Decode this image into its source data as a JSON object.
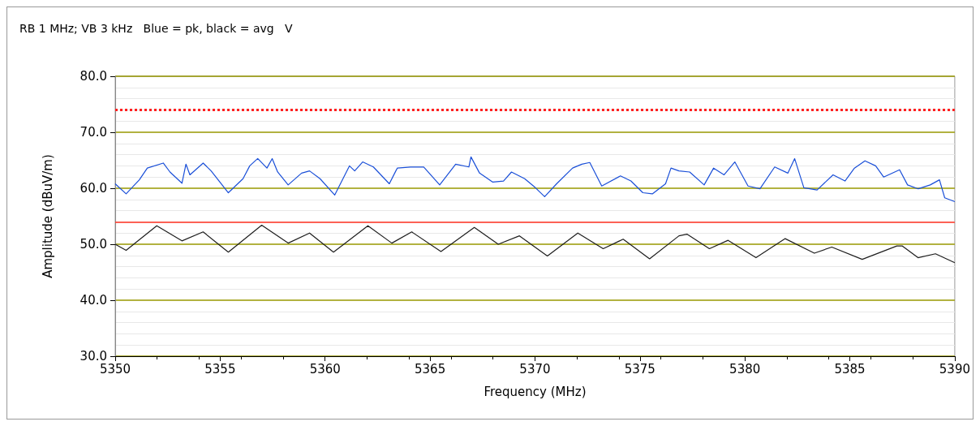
{
  "chart_data": {
    "type": "line",
    "title": "RB 1 MHz; VB 3 kHz   Blue = pk, black = avg   V",
    "xlabel": "Frequency (MHz)",
    "ylabel": "Amplitude (dBuV/m)",
    "xlim": [
      5350,
      5390
    ],
    "xticks": [
      5350,
      5355,
      5360,
      5365,
      5370,
      5375,
      5380,
      5385,
      5390
    ],
    "ylim": [
      30,
      80
    ],
    "yticks": [
      {
        "value": 30,
        "label": "30.0"
      },
      {
        "value": 40,
        "label": "40.0"
      },
      {
        "value": 50,
        "label": "50.0"
      },
      {
        "value": 60,
        "label": "60.0"
      },
      {
        "value": 70,
        "label": "70.0"
      },
      {
        "value": 80,
        "label": "80.0"
      }
    ],
    "grid": "y",
    "marker": "none",
    "line_style": "solid",
    "ref_lines": [
      {
        "axis": "y",
        "value": 74,
        "label": null,
        "color": "#ff2020",
        "line_style": "dotted"
      },
      {
        "axis": "y",
        "value": 54,
        "label": null,
        "color": "#ff3020",
        "line_style": "solid"
      }
    ],
    "series": [
      {
        "color": "#1a4fd8",
        "x": [
          5350,
          5350.52,
          5351.15,
          5351.53,
          5352.29,
          5352.61,
          5353.18,
          5353.37,
          5353.56,
          5354.19,
          5354.57,
          5355.39,
          5356.09,
          5356.41,
          5356.79,
          5357.23,
          5357.48,
          5357.74,
          5358.24,
          5358.88,
          5359.26,
          5359.76,
          5360.46,
          5361.16,
          5361.41,
          5361.79,
          5362.3,
          5363.06,
          5363.37,
          5363.44,
          5364.07,
          5364.7,
          5365.46,
          5366.22,
          5366.85,
          5366.95,
          5367.36,
          5367.99,
          5368.5,
          5368.88,
          5369.51,
          5370.02,
          5370.46,
          5371.03,
          5371.79,
          5372.23,
          5372.61,
          5373.18,
          5374.07,
          5374.57,
          5375.14,
          5375.59,
          5376.22,
          5376.48,
          5376.86,
          5377.37,
          5378.06,
          5378.51,
          5379.01,
          5379.52,
          5380.15,
          5380.72,
          5381.42,
          5382.05,
          5382.37,
          5382.81,
          5383.44,
          5384.2,
          5384.77,
          5385.22,
          5385.72,
          5386.23,
          5386.61,
          5387.37,
          5387.75,
          5388.26,
          5388.83,
          5389.27,
          5389.52,
          5390
        ],
        "values": [
          60.8,
          59.0,
          61.5,
          63.6,
          64.5,
          62.9,
          60.9,
          64.3,
          62.4,
          64.5,
          63.1,
          59.2,
          61.7,
          64.0,
          65.3,
          63.6,
          65.3,
          62.9,
          60.6,
          62.7,
          63.1,
          61.7,
          58.8,
          64.0,
          63.1,
          64.7,
          63.8,
          60.8,
          63.1,
          63.6,
          63.8,
          63.8,
          60.6,
          64.3,
          63.8,
          65.6,
          62.7,
          61.1,
          61.3,
          62.9,
          61.7,
          60.1,
          58.5,
          60.8,
          63.6,
          64.3,
          64.6,
          60.4,
          62.2,
          61.3,
          59.2,
          59.0,
          60.8,
          63.6,
          63.1,
          62.9,
          60.6,
          63.6,
          62.4,
          64.7,
          60.4,
          59.9,
          63.8,
          62.7,
          65.3,
          60.1,
          59.7,
          62.4,
          61.3,
          63.6,
          64.9,
          64.0,
          62.0,
          63.3,
          60.6,
          59.9,
          60.6,
          61.5,
          58.3,
          57.6
        ]
      },
      {
        "color": "#1e1e1e",
        "x": [
          5350,
          5350.52,
          5351.98,
          5353.18,
          5354.19,
          5355.39,
          5356.98,
          5358.24,
          5359.26,
          5360.4,
          5362.04,
          5363.18,
          5364.13,
          5365.52,
          5367.11,
          5368.25,
          5369.26,
          5370.59,
          5372.04,
          5373.25,
          5374.2,
          5375.46,
          5376.86,
          5377.24,
          5378.31,
          5379.2,
          5380.53,
          5381.92,
          5383.31,
          5384.14,
          5385.59,
          5387.24,
          5387.49,
          5388.25,
          5389.08,
          5390
        ],
        "values": [
          50.0,
          48.9,
          53.3,
          50.6,
          52.2,
          48.6,
          53.4,
          50.2,
          52.0,
          48.6,
          53.3,
          50.2,
          52.2,
          48.7,
          53.0,
          50.0,
          51.5,
          47.9,
          52.0,
          49.2,
          50.9,
          47.4,
          51.5,
          51.8,
          49.2,
          50.7,
          47.6,
          51.0,
          48.4,
          49.5,
          47.3,
          49.7,
          49.7,
          47.6,
          48.3,
          46.7
        ]
      }
    ]
  }
}
